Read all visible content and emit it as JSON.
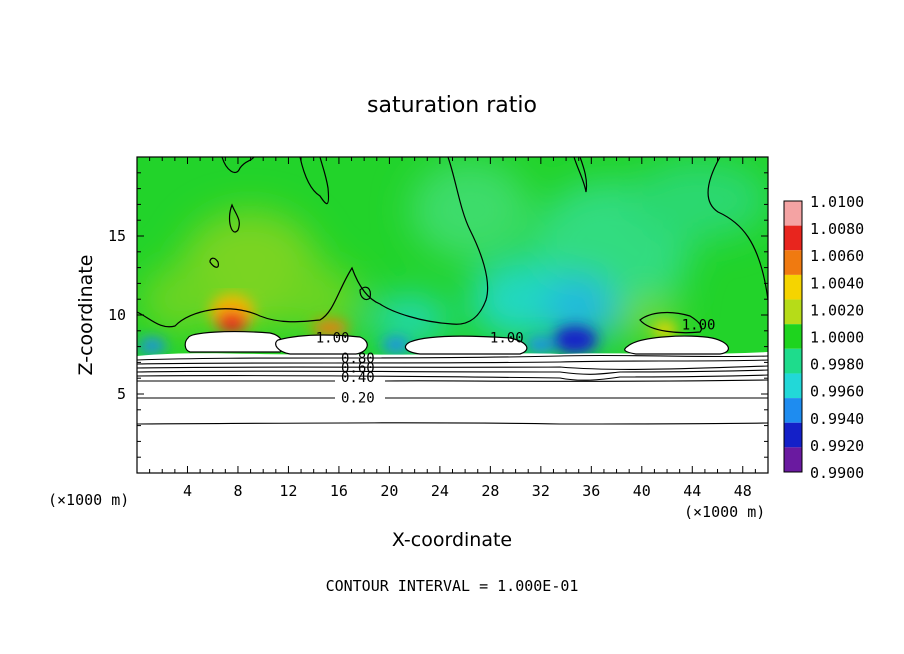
{
  "chart_data": {
    "type": "heatmap",
    "title": "saturation ratio",
    "xlabel": "X-coordinate",
    "ylabel": "Z-coordinate",
    "x_unit": "(×1000 m)",
    "y_unit": "(×1000 m)",
    "xlim": [
      0,
      50
    ],
    "ylim": [
      0,
      20
    ],
    "x_ticks": [
      4,
      8,
      12,
      16,
      20,
      24,
      28,
      32,
      36,
      40,
      44,
      48
    ],
    "y_ticks": [
      5,
      10,
      15
    ],
    "footer": "CONTOUR INTERVAL = 1.000E-01",
    "colorbar": {
      "levels": [
        "1.0100",
        "1.0080",
        "1.0060",
        "1.0040",
        "1.0020",
        "1.0000",
        "0.9980",
        "0.9960",
        "0.9940",
        "0.9920",
        "0.9900"
      ],
      "colors": [
        "#f4a3a3",
        "#e8251e",
        "#f07a10",
        "#f5d400",
        "#b6dc18",
        "#1ed41e",
        "#1edc8c",
        "#22d8d8",
        "#1e8cf0",
        "#1420c8",
        "#6a1aa0"
      ]
    },
    "contour_labels": [
      {
        "text": "1.00",
        "x": 15.5,
        "z": 8.4
      },
      {
        "text": "1.00",
        "x": 29.3,
        "z": 8.4
      },
      {
        "text": "1.00",
        "x": 44.5,
        "z": 9.2
      },
      {
        "text": "0.80",
        "x": 17.5,
        "z": 7.1
      },
      {
        "text": "0.60",
        "x": 17.5,
        "z": 6.5
      },
      {
        "text": "0.40",
        "x": 17.5,
        "z": 5.9
      },
      {
        "text": "0.20",
        "x": 17.5,
        "z": 4.6
      }
    ],
    "contour_levels_below_cloud": [
      0.8,
      0.6,
      0.4,
      0.2
    ]
  }
}
